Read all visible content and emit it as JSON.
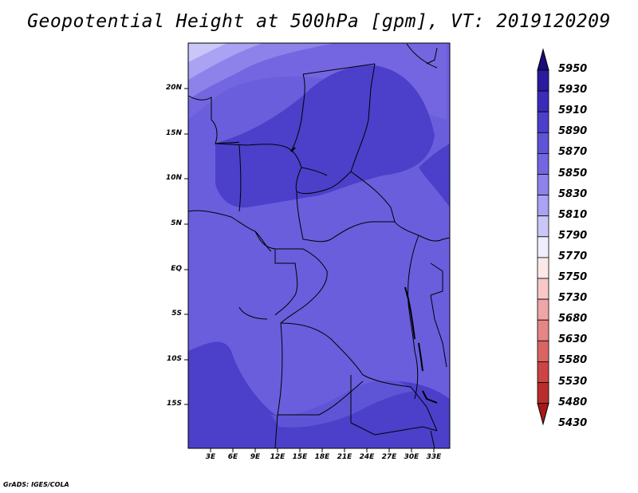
{
  "title": "Geopotential Height at 500hPa [gpm], VT: 2019120209",
  "credit": "GrADS: IGES/COLA",
  "lat_ticks": [
    "20N",
    "15N",
    "10N",
    "5N",
    "EQ",
    "5S",
    "10S",
    "15S"
  ],
  "lon_ticks": [
    "3E",
    "6E",
    "9E",
    "12E",
    "15E",
    "18E",
    "21E",
    "24E",
    "27E",
    "30E",
    "33E"
  ],
  "colorbar": {
    "labels": [
      "5950",
      "5930",
      "5910",
      "5890",
      "5870",
      "5850",
      "5830",
      "5810",
      "5790",
      "5770",
      "5750",
      "5730",
      "5680",
      "5630",
      "5580",
      "5530",
      "5480",
      "5430"
    ],
    "colors": [
      "#1a0c7a",
      "#2a1a9e",
      "#3a2bb8",
      "#4c3fca",
      "#5e54d6",
      "#7366e0",
      "#8c82ea",
      "#aaa2f2",
      "#cbc6f8",
      "#efeefc",
      "#fde8e8",
      "#f8c8c8",
      "#f0a6a6",
      "#e58686",
      "#d86464",
      "#cc4444",
      "#bb2c2c",
      "#a81818"
    ]
  },
  "map": {
    "lat_range": [
      "20N",
      "15S"
    ],
    "lon_range": [
      "3E",
      "33E"
    ],
    "fill_colors": {
      "high": "#4c3fca",
      "mid": "#5e54d6",
      "low": "#7366e0",
      "lower": "#8c82ea",
      "lowest": "#aaa2f2"
    }
  }
}
